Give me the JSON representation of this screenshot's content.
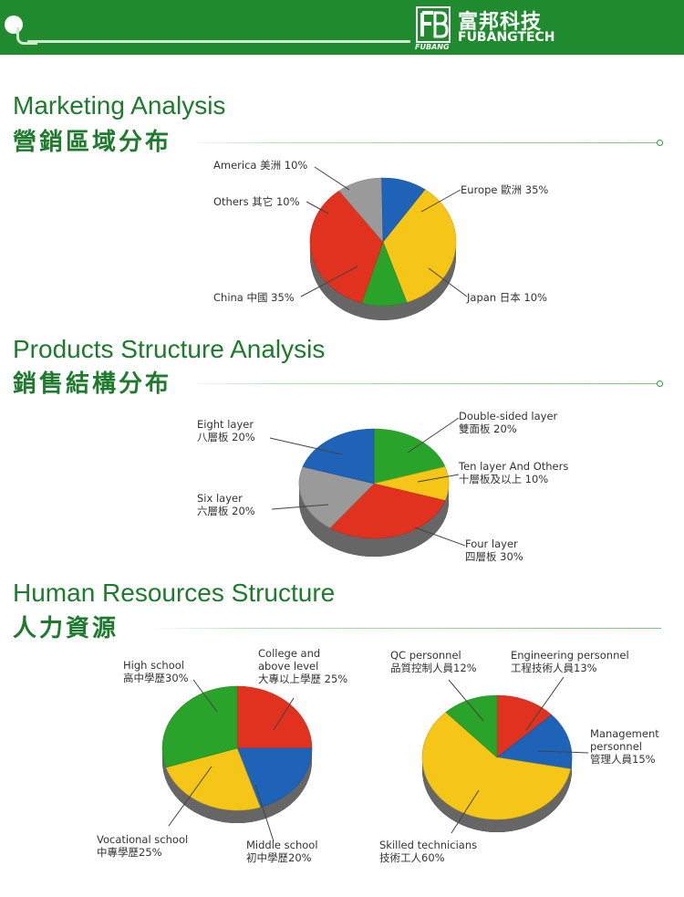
{
  "header": {
    "brand_cn": "富邦科技",
    "brand_en": "FUBANGTECH",
    "brand_small": "FUBANG"
  },
  "sections": [
    {
      "title": "Marketing Analysis",
      "subtitle": "營銷區域分布"
    },
    {
      "title": "Products Structure Analysis",
      "subtitle": "銷售結構分布"
    },
    {
      "title": "Human Resources Structure",
      "subtitle": "人力資源"
    }
  ],
  "chart_data": [
    {
      "type": "pie",
      "slices": [
        {
          "label_lines": [
            "Europe 歐洲 35%"
          ],
          "value": 35,
          "color": "#f5c518"
        },
        {
          "label_lines": [
            "Japan 日本 10%"
          ],
          "value": 10,
          "color": "#2aa32a"
        },
        {
          "label_lines": [
            "China 中國 35%"
          ],
          "value": 35,
          "color": "#e0321e"
        },
        {
          "label_lines": [
            "Others 其它 10%"
          ],
          "value": 10,
          "color": "#9a9a9a"
        },
        {
          "label_lines": [
            "America 美洲 10%"
          ],
          "value": 10,
          "color": "#1f63b8"
        }
      ]
    },
    {
      "type": "pie",
      "slices": [
        {
          "label_lines": [
            "Double-sided layer",
            "雙面板 20%"
          ],
          "value": 20,
          "color": "#2aa32a"
        },
        {
          "label_lines": [
            "Ten layer And Others",
            "十層板及以上 10%"
          ],
          "value": 10,
          "color": "#f5c518"
        },
        {
          "label_lines": [
            "Four layer",
            "四層板 30%"
          ],
          "value": 30,
          "color": "#e0321e"
        },
        {
          "label_lines": [
            "Six layer",
            "六層板 20%"
          ],
          "value": 20,
          "color": "#9a9a9a"
        },
        {
          "label_lines": [
            "Eight layer",
            "八層板 20%"
          ],
          "value": 20,
          "color": "#1f63b8"
        }
      ]
    },
    {
      "type": "pie",
      "slices": [
        {
          "label_lines": [
            "College and",
            "above level",
            "大專以上學歷 25%"
          ],
          "value": 25,
          "color": "#e0321e"
        },
        {
          "label_lines": [
            "Middle school",
            "初中學歷20%"
          ],
          "value": 20,
          "color": "#1f63b8"
        },
        {
          "label_lines": [
            "Vocational school",
            "中專學歷25%"
          ],
          "value": 25,
          "color": "#f5c518"
        },
        {
          "label_lines": [
            "High school",
            "高中學歷30%"
          ],
          "value": 30,
          "color": "#2aa32a"
        }
      ]
    },
    {
      "type": "pie",
      "slices": [
        {
          "label_lines": [
            "Engineering personnel",
            "工程技術人員13%"
          ],
          "value": 13,
          "color": "#e0321e"
        },
        {
          "label_lines": [
            "Management",
            "personnel",
            "管理人員15%"
          ],
          "value": 15,
          "color": "#1f63b8"
        },
        {
          "label_lines": [
            "Skilled technicians",
            "技術工人60%"
          ],
          "value": 60,
          "color": "#f5c518"
        },
        {
          "label_lines": [
            "QC personnel",
            "品質控制人員12%"
          ],
          "value": 12,
          "color": "#2aa32a"
        }
      ]
    }
  ]
}
